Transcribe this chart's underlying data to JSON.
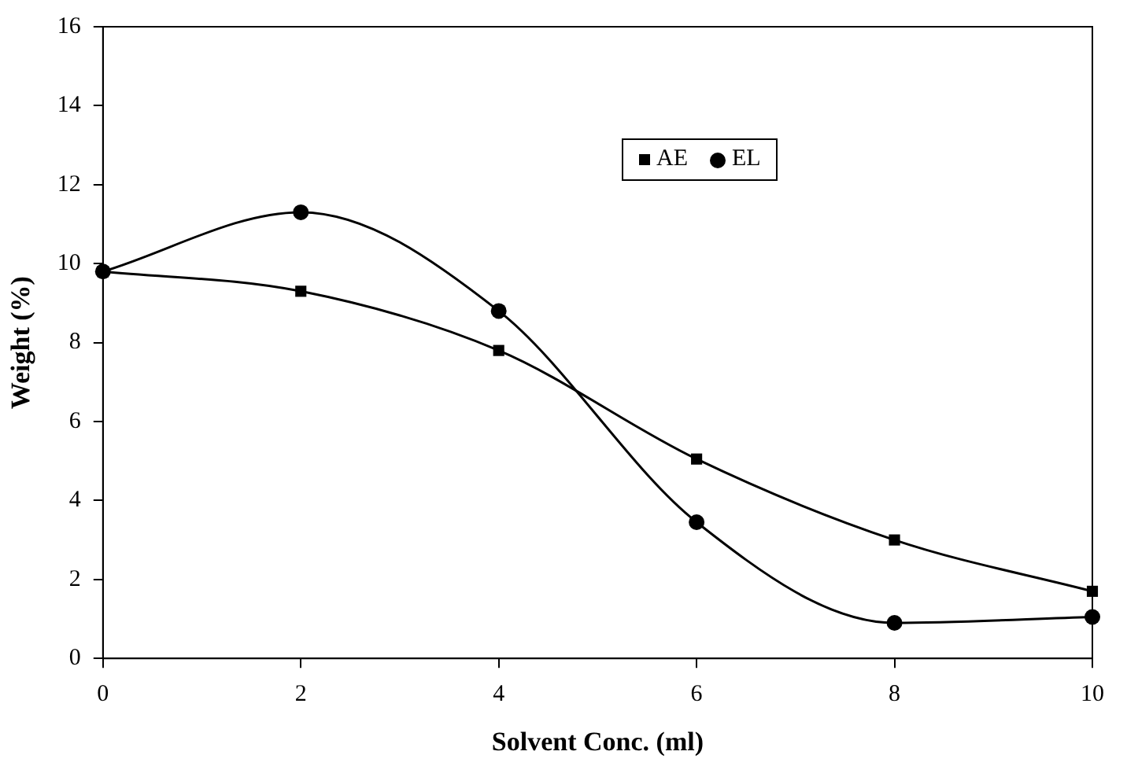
{
  "chart_data": {
    "type": "line",
    "xlabel": "Solvent Conc. (ml)",
    "ylabel": "Weight (%)",
    "x": [
      0,
      2,
      4,
      6,
      8,
      10
    ],
    "series": [
      {
        "name": "AE",
        "color": "#000000",
        "marker": "square",
        "values": [
          9.8,
          9.3,
          7.8,
          5.05,
          3.0,
          1.7
        ]
      },
      {
        "name": "EL",
        "color": "#000000",
        "marker": "circle",
        "values": [
          9.8,
          11.3,
          8.8,
          3.45,
          0.9,
          1.05
        ]
      }
    ],
    "xlim": [
      0,
      10
    ],
    "xticks": [
      0,
      2,
      4,
      6,
      8,
      10
    ],
    "ylim": [
      0,
      16
    ],
    "yticks": [
      0,
      2,
      4,
      6,
      8,
      10,
      12,
      14,
      16
    ],
    "grid": false,
    "legend": "top right",
    "line_style": "solid"
  }
}
